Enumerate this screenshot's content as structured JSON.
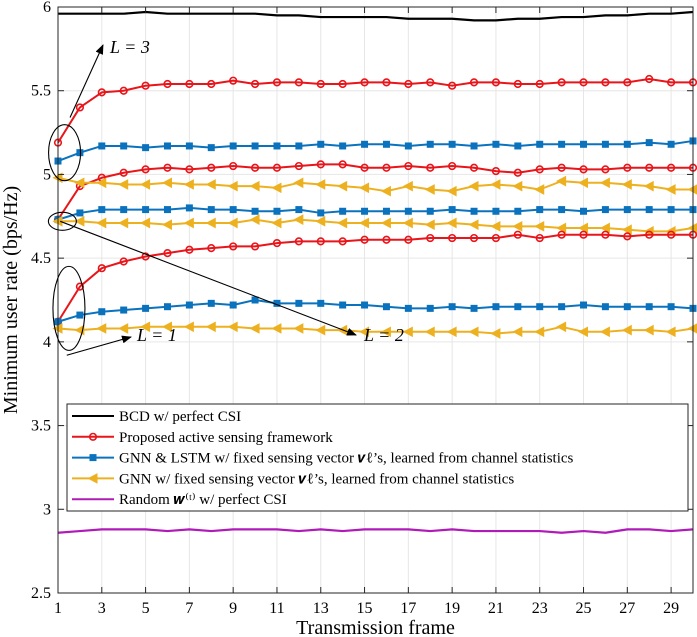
{
  "chart_data": {
    "type": "line",
    "xlabel": "Transmission frame",
    "ylabel": "Minimum user rate (bps/Hz)",
    "xlim": [
      1,
      30
    ],
    "ylim": [
      2.5,
      6
    ],
    "xticks": [
      "1",
      "3",
      "5",
      "7",
      "9",
      "11",
      "13",
      "15",
      "17",
      "19",
      "21",
      "23",
      "25",
      "27",
      "29"
    ],
    "yticks": [
      "2.5",
      "3",
      "3.5",
      "4",
      "4.5",
      "5",
      "5.5",
      "6"
    ],
    "grid": true,
    "legend_position": "bottom-left",
    "legend": [
      {
        "label": "BCD w/ perfect CSI",
        "color": "#000000",
        "marker": "none"
      },
      {
        "label": "Proposed active sensing framework",
        "color": "#e8151a",
        "marker": "circle"
      },
      {
        "label": "GNN & LSTM w/ fixed sensing vector 𝒗ℓ’s, learned from channel statistics",
        "color": "#0b72bd",
        "marker": "square"
      },
      {
        "label": "GNN w/ fixed sensing vector 𝒗ℓ’s, learned from channel statistics",
        "color": "#edb120",
        "marker": "triangle-left"
      },
      {
        "label": "Random 𝒘⁽ᵗ⁾ w/ perfect CSI",
        "color": "#b01ab8",
        "marker": "none"
      }
    ],
    "annotations": [
      {
        "text": "L = 3",
        "points_to": "L=3 curves at frame 1"
      },
      {
        "text": "L = 1",
        "points_to": "L=1 curves at frame 1"
      },
      {
        "text": "L = 2",
        "points_to": "L=2 curves at frame 1"
      }
    ],
    "series": [
      {
        "name": "BCD w/ perfect CSI",
        "color": "#000000",
        "marker": "none",
        "values": [
          5.96,
          5.96,
          5.96,
          5.96,
          5.97,
          5.96,
          5.96,
          5.96,
          5.96,
          5.96,
          5.95,
          5.95,
          5.94,
          5.94,
          5.94,
          5.94,
          5.93,
          5.93,
          5.93,
          5.92,
          5.92,
          5.93,
          5.93,
          5.94,
          5.94,
          5.95,
          5.95,
          5.96,
          5.96,
          5.97
        ]
      },
      {
        "name": "Proposed active sensing (L=3)",
        "color": "#e8151a",
        "marker": "circle",
        "values": [
          5.19,
          5.4,
          5.49,
          5.5,
          5.53,
          5.54,
          5.54,
          5.54,
          5.56,
          5.54,
          5.55,
          5.55,
          5.54,
          5.54,
          5.55,
          5.55,
          5.54,
          5.55,
          5.53,
          5.55,
          5.55,
          5.54,
          5.54,
          5.55,
          5.55,
          5.55,
          5.55,
          5.57,
          5.55,
          5.55
        ]
      },
      {
        "name": "GNN & LSTM (L=3)",
        "color": "#0b72bd",
        "marker": "square",
        "values": [
          5.08,
          5.13,
          5.17,
          5.17,
          5.16,
          5.17,
          5.17,
          5.16,
          5.17,
          5.17,
          5.17,
          5.17,
          5.18,
          5.17,
          5.18,
          5.18,
          5.17,
          5.18,
          5.18,
          5.17,
          5.18,
          5.17,
          5.18,
          5.18,
          5.18,
          5.18,
          5.18,
          5.19,
          5.18,
          5.2
        ]
      },
      {
        "name": "Proposed active sensing (L=2)",
        "color": "#e8151a",
        "marker": "circle",
        "values": [
          4.73,
          4.93,
          4.98,
          5.01,
          5.03,
          5.04,
          5.03,
          5.04,
          5.05,
          5.04,
          5.04,
          5.05,
          5.06,
          5.06,
          5.04,
          5.04,
          5.05,
          5.04,
          5.05,
          5.04,
          5.02,
          5.01,
          5.03,
          5.04,
          5.03,
          5.03,
          5.04,
          5.04,
          5.04,
          5.04
        ]
      },
      {
        "name": "GNN (L=3)",
        "color": "#edb120",
        "marker": "triangle-left",
        "values": [
          4.98,
          4.95,
          4.95,
          4.94,
          4.94,
          4.95,
          4.94,
          4.94,
          4.93,
          4.93,
          4.92,
          4.95,
          4.94,
          4.93,
          4.92,
          4.9,
          4.93,
          4.91,
          4.9,
          4.93,
          4.94,
          4.93,
          4.91,
          4.96,
          4.95,
          4.95,
          4.94,
          4.93,
          4.91,
          4.91
        ]
      },
      {
        "name": "GNN & LSTM (L=2)",
        "color": "#0b72bd",
        "marker": "square",
        "values": [
          4.73,
          4.77,
          4.79,
          4.79,
          4.79,
          4.79,
          4.8,
          4.79,
          4.79,
          4.78,
          4.78,
          4.79,
          4.77,
          4.78,
          4.78,
          4.78,
          4.78,
          4.78,
          4.79,
          4.78,
          4.78,
          4.78,
          4.79,
          4.79,
          4.78,
          4.79,
          4.79,
          4.79,
          4.79,
          4.79
        ]
      },
      {
        "name": "GNN (L=2)",
        "color": "#edb120",
        "marker": "triangle-left",
        "values": [
          4.72,
          4.72,
          4.71,
          4.71,
          4.71,
          4.7,
          4.71,
          4.71,
          4.71,
          4.73,
          4.71,
          4.73,
          4.72,
          4.71,
          4.71,
          4.71,
          4.71,
          4.7,
          4.71,
          4.7,
          4.69,
          4.69,
          4.69,
          4.68,
          4.68,
          4.68,
          4.67,
          4.66,
          4.66,
          4.68
        ]
      },
      {
        "name": "Proposed active sensing (L=1)",
        "color": "#e8151a",
        "marker": "circle",
        "values": [
          4.12,
          4.33,
          4.44,
          4.48,
          4.51,
          4.53,
          4.55,
          4.56,
          4.57,
          4.57,
          4.59,
          4.6,
          4.6,
          4.6,
          4.61,
          4.61,
          4.61,
          4.62,
          4.62,
          4.62,
          4.62,
          4.64,
          4.62,
          4.64,
          4.64,
          4.64,
          4.63,
          4.64,
          4.64,
          4.64
        ]
      },
      {
        "name": "GNN & LSTM (L=1)",
        "color": "#0b72bd",
        "marker": "square",
        "values": [
          4.12,
          4.16,
          4.18,
          4.19,
          4.2,
          4.21,
          4.22,
          4.23,
          4.22,
          4.25,
          4.23,
          4.23,
          4.23,
          4.22,
          4.22,
          4.21,
          4.2,
          4.2,
          4.21,
          4.2,
          4.21,
          4.21,
          4.21,
          4.21,
          4.22,
          4.21,
          4.21,
          4.21,
          4.21,
          4.2
        ]
      },
      {
        "name": "GNN (L=1)",
        "color": "#edb120",
        "marker": "triangle-left",
        "values": [
          4.08,
          4.07,
          4.08,
          4.08,
          4.09,
          4.09,
          4.09,
          4.09,
          4.09,
          4.08,
          4.08,
          4.08,
          4.07,
          4.07,
          4.06,
          4.06,
          4.06,
          4.06,
          4.06,
          4.06,
          4.05,
          4.06,
          4.06,
          4.09,
          4.06,
          4.06,
          4.07,
          4.07,
          4.06,
          4.08
        ]
      },
      {
        "name": "Random w(t) w/ perfect CSI",
        "color": "#b01ab8",
        "marker": "none",
        "values": [
          2.86,
          2.87,
          2.88,
          2.88,
          2.88,
          2.87,
          2.88,
          2.87,
          2.88,
          2.88,
          2.88,
          2.87,
          2.88,
          2.87,
          2.88,
          2.88,
          2.88,
          2.87,
          2.88,
          2.87,
          2.87,
          2.87,
          2.87,
          2.86,
          2.87,
          2.86,
          2.88,
          2.88,
          2.87,
          2.88
        ]
      }
    ]
  }
}
